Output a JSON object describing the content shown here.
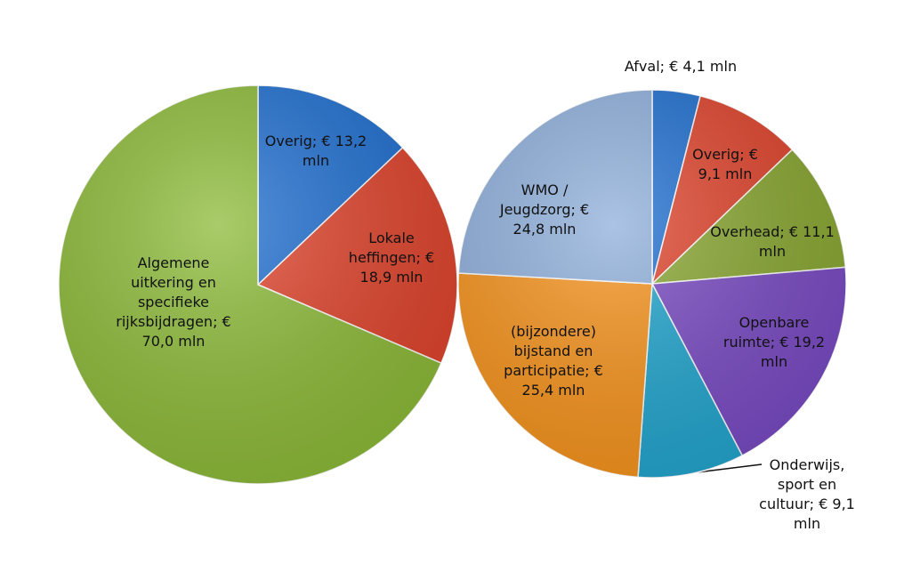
{
  "chart_data": [
    {
      "type": "pie",
      "values": [
        13.2,
        18.9,
        70.0
      ],
      "value_labels": [
        "Overig; € 13,2 mln",
        "Lokale heffingen; € 18,9 mln",
        "Algemene uitkering en specifieke rijksbijdragen; € 70,0 mln"
      ],
      "colors": [
        "#1f6fd1",
        "#e0442c",
        "#8dbb38"
      ]
    },
    {
      "type": "pie",
      "values": [
        4.1,
        9.1,
        11.1,
        19.2,
        9.1,
        25.4,
        24.8
      ],
      "value_labels": [
        "Afval; € 4,1 mln",
        "Overig; € 9,1 mln",
        "Overhead; € 11,1 mln",
        "Openbare ruimte; € 19,2 mln",
        "Onderwijs, sport en cultuur; € 9,1 mln",
        "(bijzondere) bijstand en participatie; € 25,4 mln",
        "WMO / Jeugdzorg; € 24,8 mln"
      ],
      "colors": [
        "#1f6fd1",
        "#e0442c",
        "#8aa832",
        "#7a4bc4",
        "#22a6cf",
        "#f7941d",
        "#8fb0dc"
      ]
    }
  ]
}
